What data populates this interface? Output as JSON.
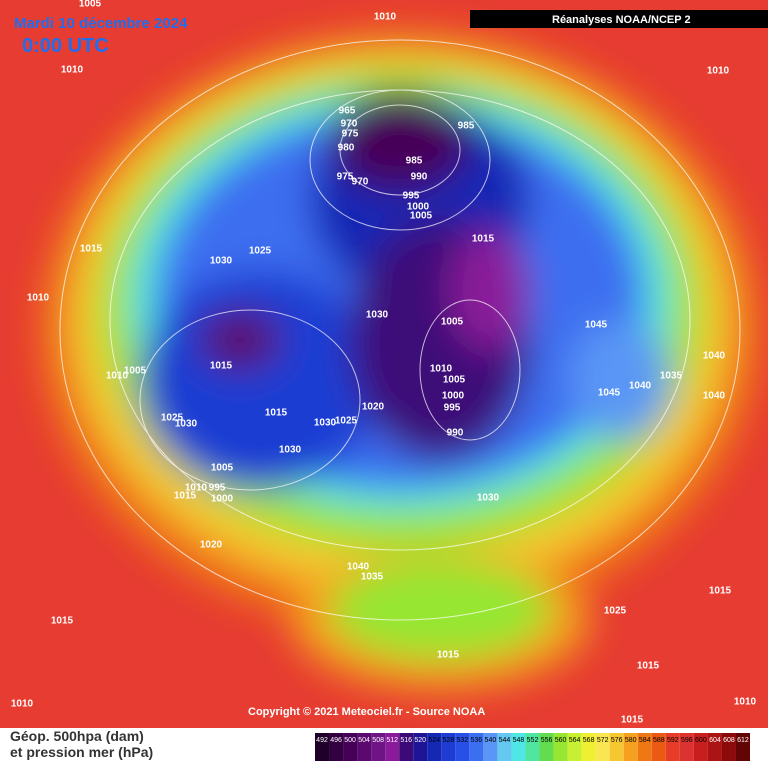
{
  "header": {
    "date": "Mardi 10 décembre 2024",
    "time": "0:00 UTC",
    "source": "Réanalyses NOAA/NCEP 2"
  },
  "copyright": "Copyright © 2021 Meteociel.fr - Source NOAA",
  "footer": {
    "line1": "Géop. 500hpa (dam)",
    "line2": "et pression mer (hPa)"
  },
  "isobar_labels": [
    "1005",
    "1010",
    "1010",
    "1010",
    "965",
    "970",
    "975",
    "985",
    "980",
    "985",
    "975",
    "970",
    "990",
    "995",
    "1000",
    "1005",
    "1015",
    "1015",
    "1025",
    "1030",
    "1010",
    "1030",
    "1005",
    "1045",
    "1015",
    "1005",
    "1010",
    "1040",
    "1035",
    "1040",
    "1045",
    "1040",
    "1010",
    "1005",
    "1000",
    "995",
    "1020",
    "1015",
    "1030",
    "1025",
    "1025",
    "1030",
    "990",
    "1030",
    "1005",
    "1010",
    "995",
    "1015",
    "1000",
    "1030",
    "1020",
    "1040",
    "1035",
    "1025",
    "1015",
    "1015",
    "1015",
    "1015",
    "1010",
    "1010",
    "1015"
  ],
  "legend": {
    "labels": [
      492,
      496,
      500,
      504,
      508,
      512,
      516,
      520,
      524,
      528,
      532,
      536,
      540,
      544,
      548,
      552,
      556,
      560,
      564,
      568,
      572,
      576,
      580,
      584,
      588,
      592,
      596,
      600,
      604,
      608,
      612
    ],
    "colors": [
      "#1e0028",
      "#320040",
      "#460058",
      "#5a0a6e",
      "#6e1484",
      "#8a1a9a",
      "#3c0a78",
      "#1e1496",
      "#1428b4",
      "#1e3cd2",
      "#2850e6",
      "#3c6ef0",
      "#5a96f5",
      "#64c8f0",
      "#50e6e6",
      "#50e6a0",
      "#64dc50",
      "#96e632",
      "#c8f032",
      "#f0f032",
      "#fae650",
      "#f5c832",
      "#f5a01e",
      "#f07814",
      "#eb5a14",
      "#e63c28",
      "#dc3232",
      "#c81e1e",
      "#aa1414",
      "#8c0a0a",
      "#640505"
    ]
  }
}
